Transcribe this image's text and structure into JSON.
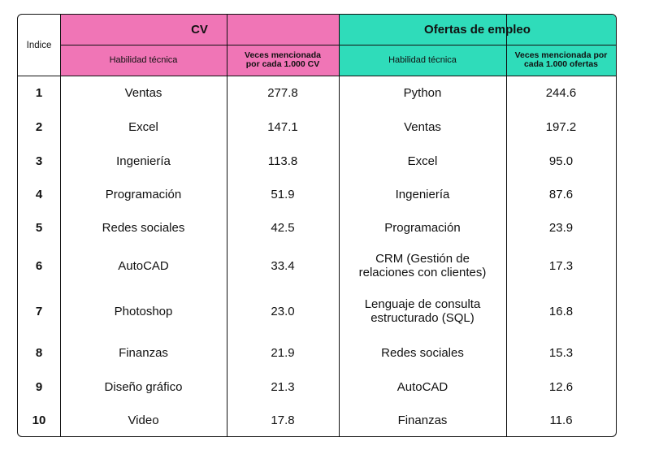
{
  "header": {
    "index_label": "Indice",
    "cv_title": "CV",
    "jobs_title": "Ofertas de empleo",
    "cv_skill_col": "Habilidad técnica",
    "cv_count_col": "Veces mencionada por cada 1.000 CV",
    "jobs_skill_col": "Habilidad técnica",
    "jobs_count_col": "Veces mencionada por cada 1.000 ofertas"
  },
  "colors": {
    "cv_header": "#f075b6",
    "jobs_header": "#2fdcba"
  },
  "rows": [
    {
      "idx": "1",
      "cv_skill": "Ventas",
      "cv_count": "277.8",
      "job_skill": "Python",
      "job_count": "244.6"
    },
    {
      "idx": "2",
      "cv_skill": "Excel",
      "cv_count": "147.1",
      "job_skill": "Ventas",
      "job_count": "197.2"
    },
    {
      "idx": "3",
      "cv_skill": "Ingeniería",
      "cv_count": "113.8",
      "job_skill": "Excel",
      "job_count": "95.0"
    },
    {
      "idx": "4",
      "cv_skill": "Programación",
      "cv_count": "51.9",
      "job_skill": "Ingeniería",
      "job_count": "87.6"
    },
    {
      "idx": "5",
      "cv_skill": "Redes sociales",
      "cv_count": "42.5",
      "job_skill": "Programación",
      "job_count": "23.9"
    },
    {
      "idx": "6",
      "cv_skill": "AutoCAD",
      "cv_count": "33.4",
      "job_skill": "CRM (Gestión de relaciones con clientes)",
      "job_count": "17.3"
    },
    {
      "idx": "7",
      "cv_skill": "Photoshop",
      "cv_count": "23.0",
      "job_skill": "Lenguaje de consulta estructurado (SQL)",
      "job_count": "16.8"
    },
    {
      "idx": "8",
      "cv_skill": "Finanzas",
      "cv_count": "21.9",
      "job_skill": "Redes sociales",
      "job_count": "15.3"
    },
    {
      "idx": "9",
      "cv_skill": "Diseño gráfico",
      "cv_count": "21.3",
      "job_skill": "AutoCAD",
      "job_count": "12.6"
    },
    {
      "idx": "10",
      "cv_skill": "Video",
      "cv_count": "17.8",
      "job_skill": "Finanzas",
      "job_count": "11.6"
    }
  ]
}
